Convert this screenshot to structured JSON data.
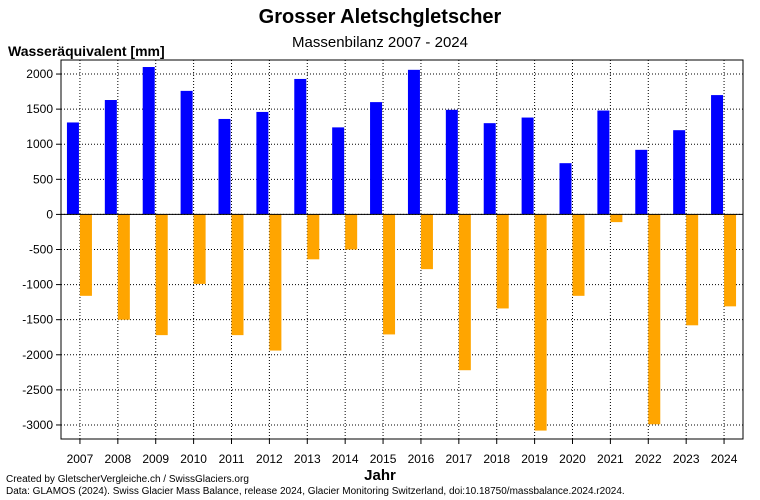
{
  "chart_data": {
    "type": "bar",
    "title": "Grosser Aletschgletscher",
    "subtitle": "Massenbilanz 2007 - 2024",
    "ylabel": "Wasseräquivalent [mm]",
    "xlabel": "Jahr",
    "categories": [
      "2007",
      "2008",
      "2009",
      "2010",
      "2011",
      "2012",
      "2013",
      "2014",
      "2015",
      "2016",
      "2017",
      "2018",
      "2019",
      "2020",
      "2021",
      "2022",
      "2023",
      "2024"
    ],
    "series": [
      {
        "color": "#0000ff",
        "values": [
          1310,
          1630,
          2100,
          1760,
          1360,
          1460,
          1930,
          1240,
          1600,
          2060,
          1490,
          1300,
          1380,
          730,
          1480,
          920,
          1200,
          1700
        ]
      },
      {
        "color": "#ffa500",
        "values": [
          -1160,
          -1500,
          -1720,
          -990,
          -1720,
          -1940,
          -640,
          -500,
          -1710,
          -780,
          -2220,
          -1340,
          -3080,
          -1160,
          -110,
          -2990,
          -1580,
          -1310
        ]
      }
    ],
    "ylim": [
      -3200,
      2200
    ],
    "yticks": [
      -3000,
      -2500,
      -2000,
      -1500,
      -1000,
      -500,
      0,
      500,
      1000,
      1500,
      2000
    ],
    "grid": true
  },
  "credits": {
    "line1": "Created by GletscherVergleiche.ch / SwissGlaciers.org",
    "line2": "Data: GLAMOS (2024). Swiss Glacier Mass Balance, release 2024, Glacier Monitoring Switzerland, doi:10.18750/massbalance.2024.r2024."
  }
}
